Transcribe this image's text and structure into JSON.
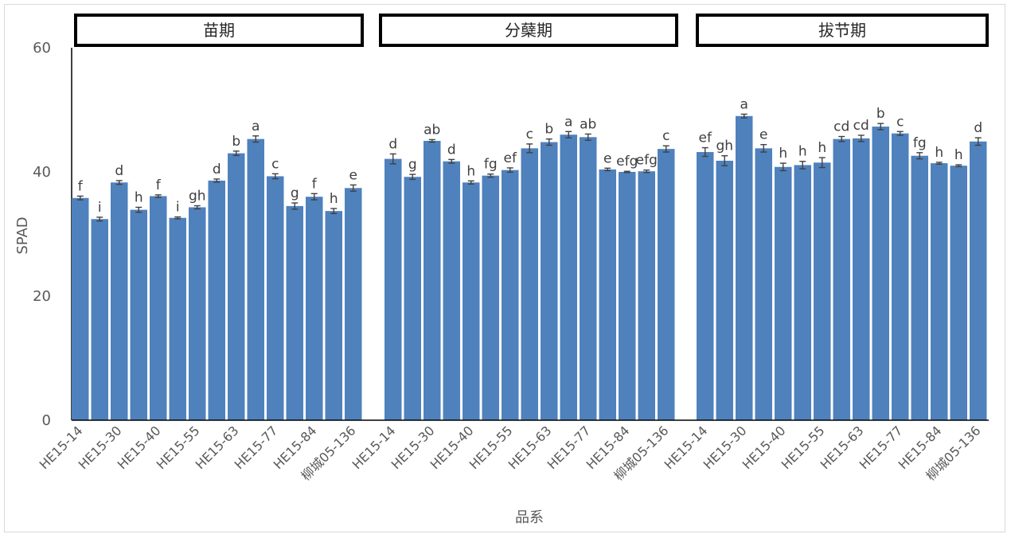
{
  "chart_data": {
    "type": "bar",
    "title": "",
    "ylabel": "SPAD",
    "xlabel": "品系",
    "ylim": [
      0,
      60
    ],
    "yticks": [
      0,
      20,
      40,
      60
    ],
    "grid": false,
    "bar_color": "#4f81bd",
    "x_tick_labels": [
      "HE15-14",
      "HE15-30",
      "HE15-40",
      "HE15-55",
      "HE15-63",
      "HE15-77",
      "HE15-84",
      "柳城05-136"
    ],
    "panels": [
      {
        "title": "苗期",
        "values": [
          35.8,
          32.4,
          38.3,
          33.9,
          36.1,
          32.6,
          34.3,
          38.6,
          43.0,
          45.3,
          39.3,
          34.5,
          36.0,
          33.7,
          37.4
        ],
        "errors": [
          0.3,
          0.3,
          0.3,
          0.4,
          0.2,
          0.15,
          0.25,
          0.25,
          0.35,
          0.5,
          0.4,
          0.5,
          0.5,
          0.4,
          0.5
        ],
        "letters": [
          "f",
          "i",
          "d",
          "h",
          "f",
          "i",
          "gh",
          "d",
          "b",
          "a",
          "c",
          "g",
          "f",
          "h",
          "e"
        ]
      },
      {
        "title": "分蘖期",
        "values": [
          42.1,
          39.2,
          45.0,
          41.7,
          38.3,
          39.4,
          40.3,
          43.8,
          44.8,
          46.0,
          45.6,
          40.4,
          40.0,
          40.1,
          43.7
        ],
        "errors": [
          0.8,
          0.4,
          0.2,
          0.3,
          0.25,
          0.25,
          0.35,
          0.7,
          0.5,
          0.5,
          0.5,
          0.2,
          0.1,
          0.2,
          0.5
        ],
        "letters": [
          "d",
          "g",
          "ab",
          "d",
          "h",
          "fg",
          "ef",
          "c",
          "b",
          "a",
          "ab",
          "e",
          "efg",
          "efg",
          "c"
        ]
      },
      {
        "title": "拔节期",
        "values": [
          43.2,
          41.8,
          49.0,
          43.8,
          40.8,
          41.1,
          41.5,
          45.3,
          45.4,
          47.3,
          46.2,
          42.6,
          41.4,
          41.0,
          44.9
        ],
        "errors": [
          0.7,
          0.8,
          0.3,
          0.6,
          0.6,
          0.6,
          0.8,
          0.4,
          0.5,
          0.5,
          0.3,
          0.5,
          0.15,
          0.15,
          0.6
        ],
        "letters": [
          "ef",
          "gh",
          "a",
          "e",
          "h",
          "h",
          "h",
          "cd",
          "cd",
          "b",
          "c",
          "fg",
          "h",
          "h",
          "d"
        ]
      }
    ]
  }
}
